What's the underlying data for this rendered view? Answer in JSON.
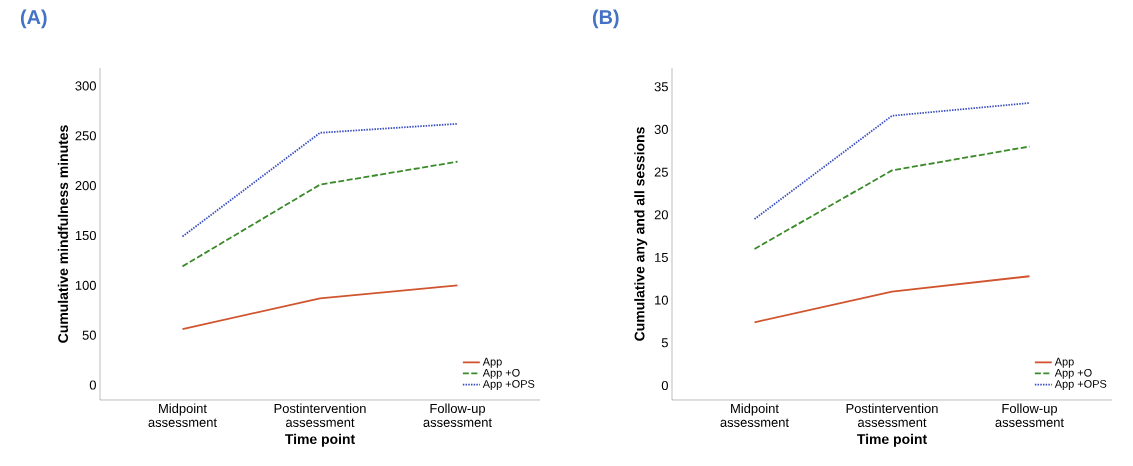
{
  "chart_data": [
    {
      "type": "line",
      "title": "(A)",
      "xlabel": "Time point",
      "ylabel": "Cumulative mindfulness minutes",
      "categories": [
        "Midpoint assessment",
        "Postintervention assessment",
        "Follow-up assessment"
      ],
      "ylim": [
        -15,
        318
      ],
      "yticks": [
        0,
        50,
        100,
        150,
        200,
        250,
        300
      ],
      "legend": "bottom right",
      "series": [
        {
          "name": "App",
          "color": "#d0552f",
          "line_style": "solid",
          "values": [
            56,
            87,
            100
          ]
        },
        {
          "name": "App +O",
          "color": "#3a8a2a",
          "line_style": "dashed",
          "values": [
            119,
            201,
            224
          ]
        },
        {
          "name": "App +OPS",
          "color": "#3a4fbf",
          "line_style": "dotted",
          "values": [
            149,
            253,
            262
          ]
        }
      ]
    },
    {
      "type": "line",
      "title": "(B)",
      "xlabel": "Time point",
      "ylabel": "Cumulative any and all sessions",
      "categories": [
        "Midpoint assessment",
        "Postintervention assessment",
        "Follow-up assessment"
      ],
      "ylim": [
        -1.7,
        37.2
      ],
      "yticks": [
        0,
        5,
        10,
        15,
        20,
        25,
        30,
        35
      ],
      "legend": "bottom right",
      "series": [
        {
          "name": "App",
          "color": "#d0552f",
          "line_style": "solid",
          "values": [
            7.4,
            11.0,
            12.8
          ]
        },
        {
          "name": "App +O",
          "color": "#3a8a2a",
          "line_style": "dashed",
          "values": [
            16.0,
            25.2,
            28.0
          ]
        },
        {
          "name": "App +OPS",
          "color": "#3a4fbf",
          "line_style": "dotted",
          "values": [
            19.5,
            31.6,
            33.1
          ]
        }
      ]
    }
  ]
}
